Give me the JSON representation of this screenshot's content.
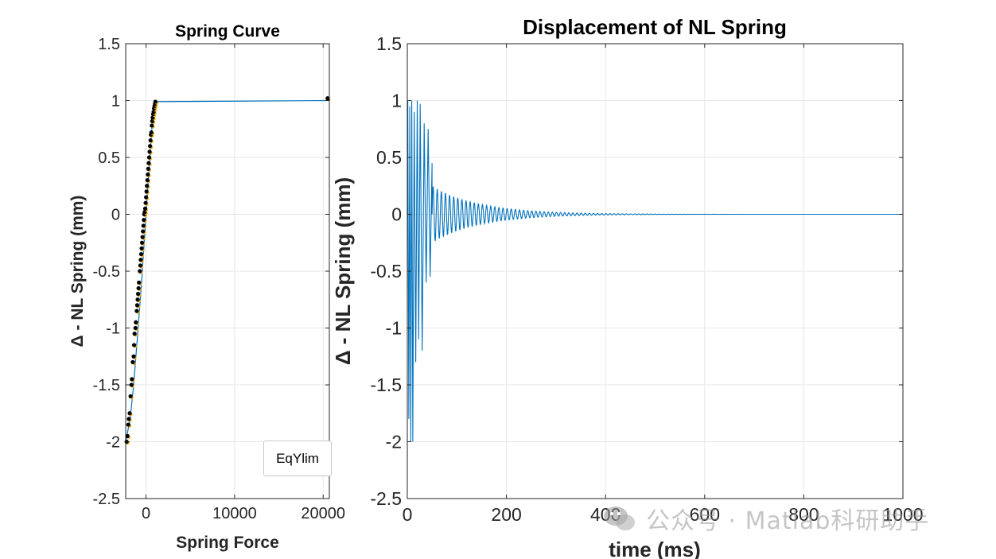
{
  "colors": {
    "series_line": "#0072BD",
    "markers": "#000000",
    "markers_alt": "#EDB120"
  },
  "controls": {
    "eq_button_label": "EqYlim"
  },
  "watermark": {
    "text": "公众号 · Matlab科研助手",
    "icon": "wechat-icon"
  },
  "chart_data": [
    {
      "type": "scatter",
      "title": "Spring Curve",
      "xlabel": "Spring Force",
      "ylabel": "Δ - NL Spring (mm)",
      "xlim": [
        -2300,
        20700
      ],
      "ylim": [
        -2.5,
        1.5
      ],
      "xticks": [
        0,
        10000,
        20000
      ],
      "xtick_labels": [
        "0",
        "10000",
        "20000"
      ],
      "yticks": [
        -2.5,
        -2,
        -1.5,
        -1,
        -0.5,
        0,
        0.5,
        1,
        1.5
      ],
      "ytick_labels": [
        "-2.5",
        "-2",
        "-1.5",
        "-1",
        "-0.5",
        "0",
        "0.5",
        "1",
        "1.5"
      ],
      "grid": true,
      "series": [
        {
          "kind": "line",
          "x": [
            -2300,
            -1800,
            -1400,
            -1100,
            -800,
            -500,
            -300,
            0,
            300,
            600,
            800,
            1000,
            20400
          ],
          "y": [
            -2,
            -1.8,
            -1.5,
            -1.2,
            -0.9,
            -0.6,
            -0.35,
            0,
            0.35,
            0.7,
            0.9,
            0.99,
            1.0
          ]
        },
        {
          "kind": "markers",
          "x": [
            -2200,
            -2100,
            -2000,
            -1950,
            -1850,
            -1750,
            -1650,
            -1600,
            -1500,
            -1400,
            -1350,
            -1300,
            -1200,
            -1150,
            -1050,
            -1000,
            -950,
            -900,
            -850,
            -800,
            -700,
            -650,
            -600,
            -550,
            -500,
            -450,
            -400,
            -350,
            -300,
            -250,
            -200,
            -150,
            -100,
            -50,
            0,
            50,
            100,
            150,
            200,
            250,
            300,
            350,
            400,
            450,
            500,
            550,
            600,
            650,
            700,
            750,
            800,
            850,
            900,
            950,
            1000,
            1050,
            20500
          ],
          "y": [
            -2.0,
            -1.95,
            -1.85,
            -1.8,
            -1.75,
            -1.6,
            -1.5,
            -1.45,
            -1.3,
            -1.25,
            -1.15,
            -1.05,
            -1.0,
            -0.95,
            -0.85,
            -0.8,
            -0.75,
            -0.7,
            -0.65,
            -0.6,
            -0.5,
            -0.45,
            -0.4,
            -0.35,
            -0.3,
            -0.25,
            -0.2,
            -0.15,
            -0.1,
            -0.05,
            0.0,
            0.02,
            0.05,
            0.1,
            0.15,
            0.2,
            0.25,
            0.3,
            0.35,
            0.4,
            0.45,
            0.5,
            0.55,
            0.6,
            0.65,
            0.7,
            0.72,
            0.78,
            0.82,
            0.85,
            0.88,
            0.9,
            0.93,
            0.95,
            0.97,
            0.99,
            1.02
          ]
        }
      ]
    },
    {
      "type": "line",
      "title": "Displacement of NL Spring",
      "xlabel": "time (ms)",
      "ylabel": "Δ - NL Spring (mm)",
      "xlim": [
        0,
        1000
      ],
      "ylim": [
        -2.5,
        1.5
      ],
      "xticks": [
        0,
        200,
        400,
        600,
        800,
        1000
      ],
      "xtick_labels": [
        "0",
        "200",
        "400",
        "600",
        "800",
        "1000"
      ],
      "yticks": [
        -2.5,
        -2,
        -1.5,
        -1,
        -0.5,
        0,
        0.5,
        1,
        1.5
      ],
      "ytick_labels": [
        "-2.5",
        "-2",
        "-1.5",
        "-1",
        "-0.5",
        "0",
        "0.5",
        "1",
        "1.5"
      ],
      "grid": true,
      "signal": {
        "initial_peaks_x": [
          1,
          3,
          5,
          7,
          9,
          11,
          14,
          17,
          20,
          23,
          26,
          30,
          34,
          38,
          42,
          46,
          50
        ],
        "initial_peaks_y": [
          1.0,
          -1.8,
          0.95,
          -2.0,
          1.0,
          -2.0,
          0.9,
          -1.3,
          1.0,
          -1.1,
          0.97,
          -1.2,
          0.8,
          -0.6,
          0.75,
          -0.55,
          0.45
        ],
        "decay_start_x": 50,
        "decay_start_amplitude": 0.25,
        "decay_ms": 95,
        "period_ms": 8.3
      }
    }
  ]
}
